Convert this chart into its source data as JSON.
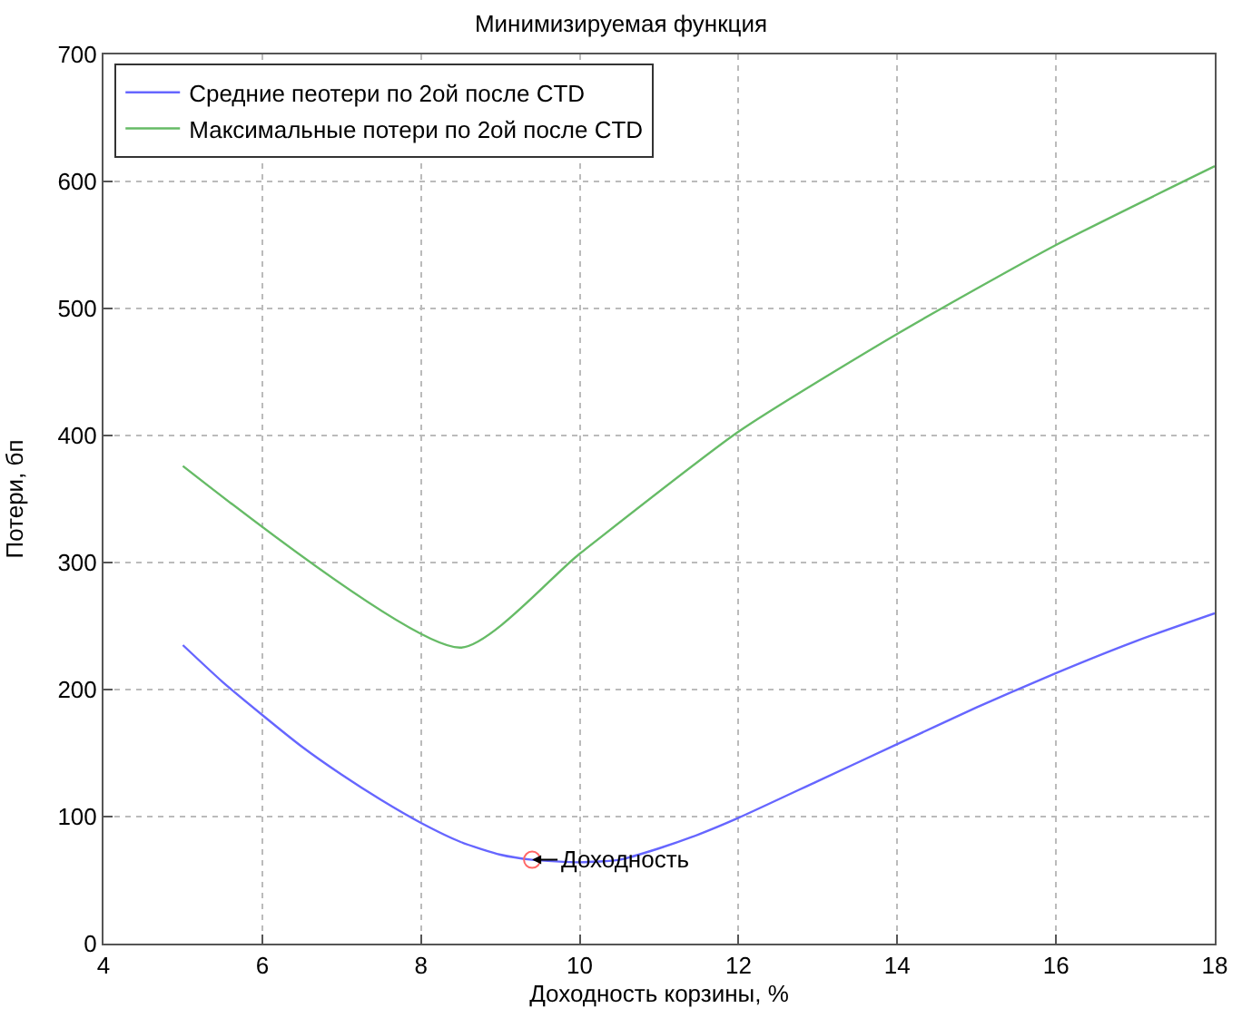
{
  "chart_data": {
    "type": "line",
    "title": "Минимизируемая функция",
    "xlabel": "Доходность корзины, %",
    "ylabel": "Потери, бп",
    "x": [
      5,
      5.5,
      6,
      6.5,
      7,
      7.5,
      8,
      8.5,
      9,
      9.4,
      10,
      10.5,
      11,
      11.5,
      12,
      13,
      14,
      15,
      16,
      17,
      18
    ],
    "series": [
      {
        "name": "Средние пеотери по 2ой после CTD",
        "color": "#6666ff",
        "values": [
          235,
          206,
          180,
          155,
          133,
          113,
          95,
          80,
          70,
          66,
          64,
          66,
          75,
          86,
          99,
          128,
          157,
          186,
          213,
          238,
          260
        ]
      },
      {
        "name": "Максимальные потери по 2ой после CTD",
        "color": "#66bb66",
        "x": [
          5,
          8.5,
          10,
          12,
          14,
          16,
          18
        ],
        "values": [
          376,
          233,
          307,
          403,
          480,
          550,
          612
        ]
      },
      {
        "type": "scatter",
        "color": "#ff6666",
        "marker": "circle",
        "x": [
          9.4
        ],
        "values": [
          66
        ]
      }
    ],
    "annotations": [
      {
        "text": "Доходность",
        "x": 9.4,
        "y": 66
      }
    ],
    "xlim": [
      4,
      18
    ],
    "xticks": [
      4,
      6,
      8,
      10,
      12,
      14,
      16,
      18
    ],
    "ylim": [
      0,
      700
    ],
    "yticks": [
      0,
      100,
      200,
      300,
      400,
      500,
      600,
      700
    ],
    "grid": true,
    "legend": "top left",
    "marker": "none",
    "line_style": "solid"
  }
}
